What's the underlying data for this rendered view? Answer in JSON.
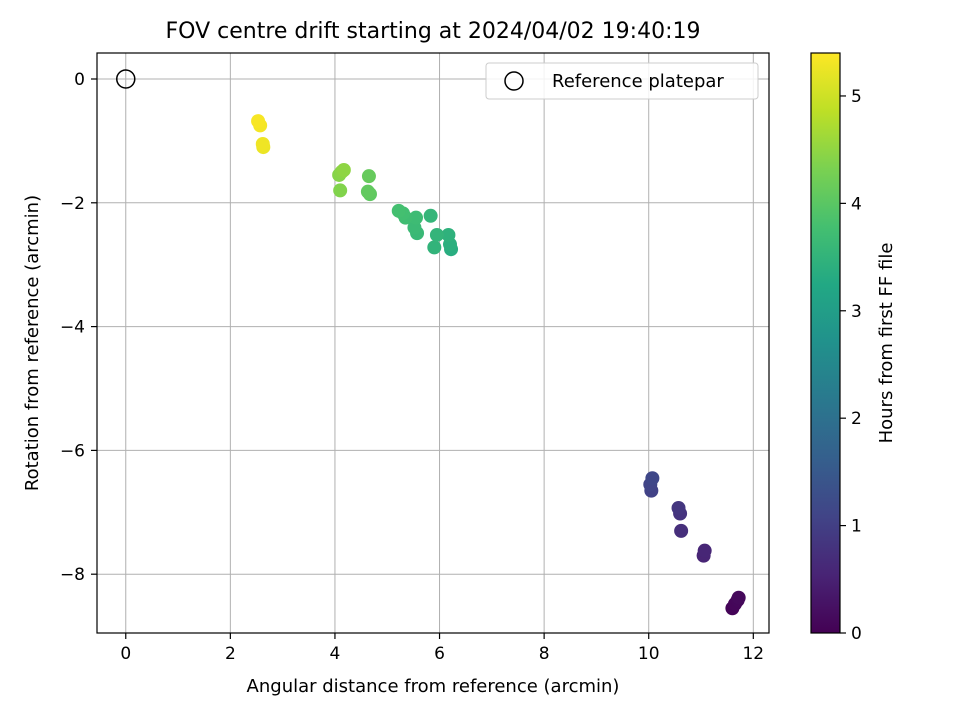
{
  "chart_data": {
    "type": "scatter",
    "title": "FOV centre drift starting at 2024/04/02 19:40:19",
    "xlabel": "Angular distance from reference (arcmin)",
    "ylabel": "Rotation from reference (arcmin)",
    "xlim": [
      -0.55,
      12.3
    ],
    "ylim": [
      -8.95,
      0.42
    ],
    "xticks": [
      0,
      2,
      4,
      6,
      8,
      10,
      12
    ],
    "xtick_labels": [
      "0",
      "2",
      "4",
      "6",
      "8",
      "10",
      "12"
    ],
    "yticks": [
      0,
      -2,
      -4,
      -6,
      -8
    ],
    "ytick_labels": [
      "0",
      "−2",
      "−4",
      "−6",
      "−8"
    ],
    "grid": true,
    "legend": {
      "placement": "top-right",
      "entries": [
        "Reference platepar"
      ]
    },
    "reference_point": {
      "x": 0,
      "y": 0
    },
    "colorbar": {
      "label": "Hours from first FF file",
      "colormap": "viridis",
      "range": [
        0,
        5.4
      ],
      "ticks": [
        0,
        1,
        2,
        3,
        4,
        5
      ],
      "tick_labels": [
        "0",
        "1",
        "2",
        "3",
        "4",
        "5"
      ]
    },
    "points": [
      {
        "x": 11.6,
        "y": -8.55,
        "t": 0.05
      },
      {
        "x": 11.65,
        "y": -8.48,
        "t": 0.08
      },
      {
        "x": 11.7,
        "y": -8.42,
        "t": 0.1
      },
      {
        "x": 11.72,
        "y": -8.38,
        "t": 0.12
      },
      {
        "x": 11.05,
        "y": -7.7,
        "t": 0.55
      },
      {
        "x": 11.07,
        "y": -7.62,
        "t": 0.58
      },
      {
        "x": 10.62,
        "y": -7.3,
        "t": 0.72
      },
      {
        "x": 10.6,
        "y": -7.02,
        "t": 0.8
      },
      {
        "x": 10.57,
        "y": -6.93,
        "t": 0.85
      },
      {
        "x": 10.05,
        "y": -6.65,
        "t": 1.05
      },
      {
        "x": 10.03,
        "y": -6.55,
        "t": 1.1
      },
      {
        "x": 10.07,
        "y": -6.45,
        "t": 1.15
      },
      {
        "x": 6.22,
        "y": -2.75,
        "t": 3.35
      },
      {
        "x": 6.2,
        "y": -2.67,
        "t": 3.4
      },
      {
        "x": 6.17,
        "y": -2.52,
        "t": 3.45
      },
      {
        "x": 5.9,
        "y": -2.72,
        "t": 3.5
      },
      {
        "x": 5.95,
        "y": -2.52,
        "t": 3.52
      },
      {
        "x": 5.83,
        "y": -2.21,
        "t": 3.55
      },
      {
        "x": 5.57,
        "y": -2.49,
        "t": 3.62
      },
      {
        "x": 5.52,
        "y": -2.4,
        "t": 3.65
      },
      {
        "x": 5.55,
        "y": -2.24,
        "t": 3.68
      },
      {
        "x": 5.35,
        "y": -2.24,
        "t": 3.72
      },
      {
        "x": 5.3,
        "y": -2.17,
        "t": 3.75
      },
      {
        "x": 5.22,
        "y": -2.13,
        "t": 3.78
      },
      {
        "x": 4.67,
        "y": -1.86,
        "t": 4.05
      },
      {
        "x": 4.63,
        "y": -1.82,
        "t": 4.08
      },
      {
        "x": 4.65,
        "y": -1.57,
        "t": 4.12
      },
      {
        "x": 4.1,
        "y": -1.8,
        "t": 4.38
      },
      {
        "x": 4.08,
        "y": -1.55,
        "t": 4.42
      },
      {
        "x": 4.13,
        "y": -1.5,
        "t": 4.45
      },
      {
        "x": 4.17,
        "y": -1.47,
        "t": 4.48
      },
      {
        "x": 2.63,
        "y": -1.1,
        "t": 5.25
      },
      {
        "x": 2.62,
        "y": -1.05,
        "t": 5.28
      },
      {
        "x": 2.57,
        "y": -0.75,
        "t": 5.32
      },
      {
        "x": 2.53,
        "y": -0.68,
        "t": 5.35
      }
    ]
  }
}
